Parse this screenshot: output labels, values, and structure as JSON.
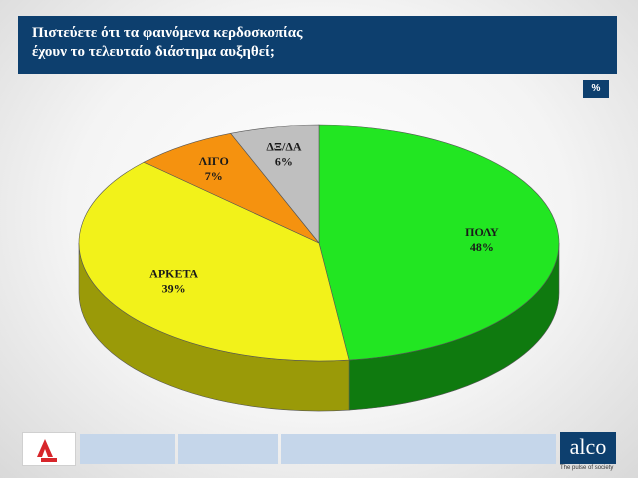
{
  "header": {
    "title_line1": "Πιστεύετε ότι τα φαινόμενα κερδοσκοπίας",
    "title_line2": "έχουν το τελευταίο διάστημα αυξηθεί;",
    "unit": "%"
  },
  "chart_data": {
    "type": "pie",
    "title": "Πιστεύετε ότι τα φαινόμενα κερδοσκοπίας έχουν το τελευταίο διάστημα αυξηθεί;",
    "categories": [
      "ΠΟΛΥ",
      "ΑΡΚΕΤΑ",
      "ΛΙΓΟ",
      "ΔΞ/ΔΑ"
    ],
    "values": [
      48,
      39,
      7,
      6
    ],
    "value_labels": [
      "48%",
      "39%",
      "7%",
      "6%"
    ],
    "colors": [
      "#22e622",
      "#f2f21a",
      "#f5920f",
      "#bfbfbf"
    ],
    "side_colors": [
      "#0f7a0f",
      "#9a9a08",
      "#a85e05",
      "#7a7a7a"
    ],
    "style": "3d"
  },
  "footer": {
    "brand": "alco",
    "tagline": "The pulse of society",
    "left_logo_icon": "channel-logo-icon"
  }
}
